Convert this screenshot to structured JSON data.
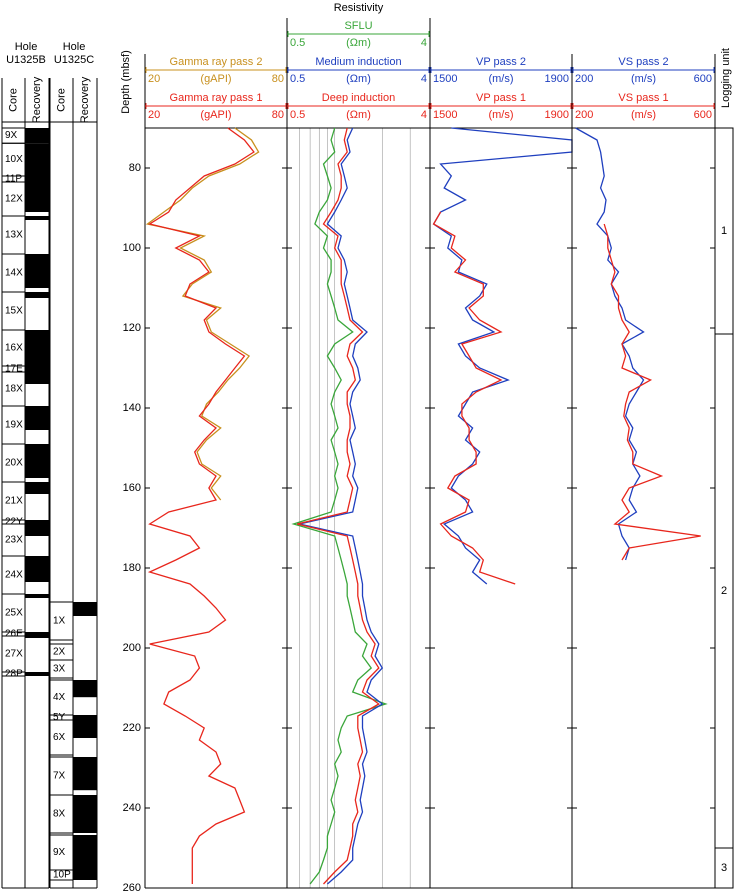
{
  "chart_data": [
    {
      "type": "cores",
      "hole_label": "Hole",
      "hole": "U1325B",
      "columns": [
        "Core",
        "Recovery"
      ],
      "cores": [
        {
          "name": "9X",
          "top": 70,
          "bottom": 73.8,
          "recovered": 3.8
        },
        {
          "name": "10X",
          "top": 73.8,
          "bottom": 82,
          "recovered": 8.2
        },
        {
          "name": "11P",
          "top": 82,
          "bottom": 83.5,
          "recovered": 1.5
        },
        {
          "name": "12X",
          "top": 83.5,
          "bottom": 92,
          "recovered": 7.5
        },
        {
          "name": "13X",
          "top": 92,
          "bottom": 101.5,
          "recovered": 1
        },
        {
          "name": "14X",
          "top": 101.5,
          "bottom": 111,
          "recovered": 8.5
        },
        {
          "name": "15X",
          "top": 111,
          "bottom": 120.5,
          "recovered": 1.5
        },
        {
          "name": "16X",
          "top": 120.5,
          "bottom": 129.5,
          "recovered": 9
        },
        {
          "name": "17E",
          "top": 129.5,
          "bottom": 131,
          "recovered": 1.5
        },
        {
          "name": "18X",
          "top": 131,
          "bottom": 139.5,
          "recovered": 3
        },
        {
          "name": "19X",
          "top": 139.5,
          "bottom": 149,
          "recovered": 6
        },
        {
          "name": "20X",
          "top": 149,
          "bottom": 158.5,
          "recovered": 8.5
        },
        {
          "name": "21X",
          "top": 158.5,
          "bottom": 168,
          "recovered": 3
        },
        {
          "name": "22Y",
          "top": 168,
          "bottom": 169,
          "recovered": 1
        },
        {
          "name": "23X",
          "top": 169,
          "bottom": 177,
          "recovered": 3
        },
        {
          "name": "24X",
          "top": 177,
          "bottom": 186.5,
          "recovered": 6.5
        },
        {
          "name": "25X",
          "top": 186.5,
          "bottom": 196,
          "recovered": 1
        },
        {
          "name": "26E",
          "top": 196,
          "bottom": 197,
          "recovered": 1
        },
        {
          "name": "27X",
          "top": 197,
          "bottom": 206,
          "recovered": 0.5
        },
        {
          "name": "28P",
          "top": 206,
          "bottom": 207,
          "recovered": 1
        }
      ]
    },
    {
      "type": "cores",
      "hole_label": "Hole",
      "hole": "U1325C",
      "columns": [
        "Core",
        "Recovery"
      ],
      "cores": [
        {
          "name": "1X",
          "top": 188.5,
          "bottom": 198,
          "recovered": 3.5
        },
        {
          "name": "2X",
          "top": 199,
          "bottom": 203,
          "recovered": 0
        },
        {
          "name": "3X",
          "top": 203,
          "bottom": 207.5,
          "recovered": 0
        },
        {
          "name": "4X",
          "top": 208,
          "bottom": 216.75,
          "recovered": 4.3
        },
        {
          "name": "5Y",
          "top": 216.75,
          "bottom": 218,
          "recovered": 1.25
        },
        {
          "name": "6X",
          "top": 218,
          "bottom": 226.75,
          "recovered": 4.5
        },
        {
          "name": "7X",
          "top": 227.25,
          "bottom": 236.75,
          "recovered": 8.3
        },
        {
          "name": "8X",
          "top": 236.75,
          "bottom": 246.25,
          "recovered": 9.5
        },
        {
          "name": "9X",
          "top": 246.75,
          "bottom": 255.5,
          "recovered": 8.75
        },
        {
          "name": "10P",
          "top": 255.5,
          "bottom": 258,
          "recovered": 2.5
        }
      ]
    },
    {
      "type": "depth-axis",
      "ylabel": "Depth (mbsf)",
      "ylim": [
        70,
        260
      ],
      "yticks": [
        80,
        100,
        120,
        140,
        160,
        180,
        200,
        220,
        240,
        260
      ]
    },
    {
      "type": "log",
      "xlim": [
        20,
        80
      ],
      "depth": [
        70,
        73,
        76,
        79,
        82,
        85,
        88,
        91,
        94,
        97,
        100,
        103,
        106,
        109,
        112,
        115,
        118,
        121,
        124,
        127,
        130,
        133,
        136,
        139,
        142,
        145,
        148,
        151,
        154,
        157,
        160,
        163,
        166,
        169,
        172,
        175,
        178,
        181,
        184,
        187,
        190,
        193,
        196,
        199,
        202,
        205,
        208,
        211,
        214,
        217,
        220,
        223,
        226,
        229,
        232,
        235,
        238,
        241,
        244,
        247,
        250,
        253,
        256,
        259
      ],
      "series": [
        {
          "name": "Gamma ray pass 2",
          "unit": "(gAPI)",
          "color": "#c8901e",
          "values": [
            58,
            65,
            68,
            60,
            47,
            40,
            35,
            28,
            21,
            45,
            35,
            45,
            48,
            40,
            36,
            52,
            46,
            48,
            56,
            64,
            60,
            55,
            51,
            46,
            44,
            52,
            46,
            42,
            44,
            52,
            48,
            52,
            null,
            null,
            null,
            null,
            null,
            null,
            null,
            null,
            null,
            null,
            null,
            null,
            null,
            null,
            null,
            null,
            null,
            null,
            null,
            null,
            null,
            null,
            null,
            null,
            null,
            null,
            null,
            null,
            null,
            null,
            null,
            null
          ]
        },
        {
          "name": "Gamma ray pass 1",
          "unit": "(gAPI)",
          "color": "#e8261c",
          "values": [
            55,
            62,
            66,
            58,
            45,
            39,
            33,
            30,
            22,
            43,
            33,
            43,
            47,
            39,
            37,
            50,
            45,
            47,
            54,
            62,
            58,
            54,
            50,
            47,
            43,
            50,
            45,
            41,
            43,
            50,
            47,
            50,
            30,
            22,
            39,
            43,
            33,
            22,
            39,
            45,
            50,
            54,
            47,
            22,
            41,
            43,
            39,
            30,
            28,
            37,
            45,
            43,
            50,
            52,
            47,
            58,
            60,
            62,
            50,
            43,
            40,
            40,
            40,
            40
          ]
        }
      ]
    },
    {
      "type": "log",
      "title": "Resistivity",
      "xscale": "log",
      "xlim": [
        0.5,
        4
      ],
      "xgrid": [
        0.6,
        0.7,
        0.8,
        0.9,
        1,
        2,
        3
      ],
      "depth": [
        70,
        73,
        76,
        79,
        82,
        85,
        88,
        91,
        94,
        97,
        100,
        103,
        106,
        109,
        112,
        115,
        118,
        121,
        124,
        127,
        130,
        133,
        136,
        139,
        142,
        145,
        148,
        151,
        154,
        157,
        160,
        163,
        166,
        169,
        172,
        175,
        178,
        181,
        184,
        187,
        190,
        193,
        196,
        199,
        202,
        205,
        208,
        211,
        214,
        217,
        220,
        223,
        226,
        229,
        232,
        235,
        238,
        241,
        244,
        247,
        250,
        253,
        256,
        259
      ],
      "series": [
        {
          "name": "SFLU",
          "unit": "(Ωm)",
          "color": "#3aa63a",
          "values": [
            1.0,
            0.95,
            1.0,
            0.85,
            0.9,
            0.95,
            0.9,
            0.8,
            0.75,
            0.9,
            0.85,
            0.95,
            0.95,
            0.9,
            0.95,
            1.0,
            1.05,
            1.3,
            1.0,
            0.9,
            1.0,
            1.1,
            1.0,
            0.95,
            1.0,
            1.05,
            0.95,
            1.0,
            1.05,
            1.0,
            1.05,
            1.0,
            0.95,
            0.55,
            1.0,
            1.05,
            1.1,
            1.15,
            1.2,
            1.2,
            1.25,
            1.3,
            1.35,
            1.6,
            1.5,
            1.7,
            1.4,
            1.3,
            2.1,
            1.2,
            1.1,
            1.05,
            1.1,
            1.0,
            1.05,
            1.0,
            0.95,
            1.0,
            0.95,
            0.9,
            0.9,
            0.85,
            0.8,
            0.7
          ]
        },
        {
          "name": "Medium induction",
          "unit": "(Ωm)",
          "color": "#1f3fbf",
          "values": [
            1.3,
            1.2,
            1.25,
            1.1,
            1.15,
            1.2,
            1.1,
            1.0,
            0.9,
            1.1,
            1.05,
            1.15,
            1.2,
            1.15,
            1.2,
            1.25,
            1.3,
            1.6,
            1.35,
            1.3,
            1.4,
            1.45,
            1.3,
            1.25,
            1.3,
            1.35,
            1.25,
            1.3,
            1.35,
            1.3,
            1.4,
            1.35,
            1.3,
            0.6,
            1.3,
            1.35,
            1.4,
            1.45,
            1.5,
            1.5,
            1.55,
            1.6,
            1.7,
            1.9,
            1.8,
            2.0,
            1.7,
            1.6,
            2.0,
            1.5,
            1.5,
            1.55,
            1.6,
            1.5,
            1.55,
            1.5,
            1.45,
            1.5,
            1.4,
            1.35,
            1.3,
            1.3,
            1.1,
            0.9
          ]
        },
        {
          "name": "Deep induction",
          "unit": "(Ωm)",
          "color": "#e8261c",
          "values": [
            1.2,
            1.15,
            1.2,
            1.05,
            1.1,
            1.1,
            1.05,
            0.95,
            0.85,
            1.05,
            1.0,
            1.1,
            1.1,
            1.1,
            1.15,
            1.2,
            1.25,
            1.5,
            1.25,
            1.2,
            1.3,
            1.35,
            1.2,
            1.2,
            1.25,
            1.25,
            1.2,
            1.2,
            1.25,
            1.2,
            1.3,
            1.25,
            1.2,
            0.58,
            1.2,
            1.25,
            1.3,
            1.35,
            1.4,
            1.4,
            1.45,
            1.5,
            1.6,
            1.8,
            1.7,
            1.9,
            1.6,
            1.5,
            1.9,
            1.4,
            1.4,
            1.45,
            1.5,
            1.4,
            1.45,
            1.4,
            1.35,
            1.4,
            1.3,
            1.3,
            1.25,
            1.2,
            1.0,
            0.85
          ]
        }
      ]
    },
    {
      "type": "log",
      "xlim": [
        1500,
        1900
      ],
      "depth": [
        70,
        73,
        76,
        79,
        82,
        85,
        88,
        91,
        94,
        97,
        100,
        103,
        106,
        109,
        112,
        115,
        118,
        121,
        124,
        127,
        130,
        133,
        136,
        139,
        142,
        145,
        148,
        151,
        154,
        157,
        160,
        163,
        166,
        169,
        172,
        175,
        178,
        181,
        184,
        187,
        190,
        193,
        196,
        199,
        202,
        205,
        208,
        211,
        214,
        217,
        220,
        223,
        226,
        229,
        232,
        235,
        238,
        241,
        244,
        247,
        250,
        253,
        256,
        259
      ],
      "series": [
        {
          "name": "VP pass 2",
          "unit": "(m/s)",
          "color": "#1f3fbf",
          "values": [
            1560,
            1900,
            1900,
            1530,
            1560,
            1540,
            1600,
            1530,
            1510,
            1560,
            1550,
            1590,
            1580,
            1660,
            1640,
            1600,
            1620,
            1680,
            1580,
            1600,
            1640,
            1720,
            1620,
            1600,
            1580,
            1620,
            1600,
            1640,
            1620,
            1580,
            1560,
            1600,
            1620,
            1540,
            1580,
            1600,
            1640,
            1620,
            1660,
            null,
            null,
            null,
            null,
            null,
            null,
            null,
            null,
            null,
            null,
            null,
            null,
            null,
            null,
            null,
            null,
            null,
            null,
            null,
            null,
            null,
            null,
            null,
            null,
            null
          ]
        },
        {
          "name": "VP pass 1",
          "unit": "(m/s)",
          "color": "#e8261c",
          "values": [
            null,
            null,
            null,
            null,
            null,
            null,
            null,
            1530,
            1510,
            1570,
            1560,
            1600,
            1570,
            1650,
            1650,
            1610,
            1640,
            1700,
            1590,
            1610,
            1630,
            1700,
            1630,
            1590,
            1590,
            1610,
            1610,
            1630,
            1630,
            1570,
            1550,
            1610,
            1600,
            1530,
            1560,
            1620,
            1650,
            1640,
            1740,
            null,
            null,
            null,
            null,
            null,
            null,
            null,
            null,
            null,
            null,
            null,
            null,
            null,
            null,
            null,
            null,
            null,
            null,
            null,
            null,
            null,
            null,
            null,
            null,
            null
          ]
        }
      ]
    },
    {
      "type": "log",
      "xlim": [
        200,
        600
      ],
      "depth": [
        70,
        73,
        76,
        79,
        82,
        85,
        88,
        91,
        94,
        97,
        100,
        103,
        106,
        109,
        112,
        115,
        118,
        121,
        124,
        127,
        130,
        133,
        136,
        139,
        142,
        145,
        148,
        151,
        154,
        157,
        160,
        163,
        166,
        169,
        172,
        175,
        178,
        181,
        184,
        187,
        190,
        193,
        196,
        199,
        202,
        205,
        208,
        211,
        214,
        217,
        220,
        223,
        226,
        229,
        232,
        235,
        238,
        241,
        244,
        247,
        250,
        253,
        256,
        259
      ],
      "series": [
        {
          "name": "VS pass 2",
          "unit": "(m/s)",
          "color": "#1f3fbf",
          "values": [
            210,
            270,
            280,
            285,
            290,
            280,
            295,
            290,
            270,
            300,
            310,
            300,
            330,
            310,
            320,
            340,
            350,
            400,
            340,
            360,
            370,
            400,
            380,
            360,
            350,
            370,
            360,
            380,
            370,
            390,
            370,
            360,
            380,
            330,
            340,
            360,
            350,
            null,
            null,
            null,
            null,
            null,
            null,
            null,
            null,
            null,
            null,
            null,
            null,
            null,
            null,
            null,
            null,
            null,
            null,
            null,
            null,
            null,
            null,
            null,
            null,
            null,
            null,
            null
          ]
        },
        {
          "name": "VS pass 1",
          "unit": "(m/s)",
          "color": "#e8261c",
          "values": [
            null,
            null,
            null,
            null,
            null,
            null,
            null,
            null,
            290,
            300,
            300,
            310,
            320,
            310,
            330,
            330,
            340,
            360,
            340,
            350,
            340,
            420,
            360,
            350,
            345,
            360,
            355,
            370,
            370,
            450,
            360,
            340,
            360,
            320,
            560,
            360,
            340,
            null,
            null,
            null,
            null,
            null,
            null,
            null,
            null,
            null,
            null,
            null,
            null,
            null,
            null,
            null,
            null,
            null,
            null,
            null,
            null,
            null,
            null,
            null,
            null,
            null,
            null,
            null
          ]
        }
      ]
    },
    {
      "type": "units",
      "title": "Logging unit",
      "units": [
        {
          "name": "1",
          "top": 70,
          "bottom": 121.5
        },
        {
          "name": "2",
          "top": 121.5,
          "bottom": 250
        },
        {
          "name": "3",
          "top": 250,
          "bottom": 260
        }
      ]
    }
  ]
}
